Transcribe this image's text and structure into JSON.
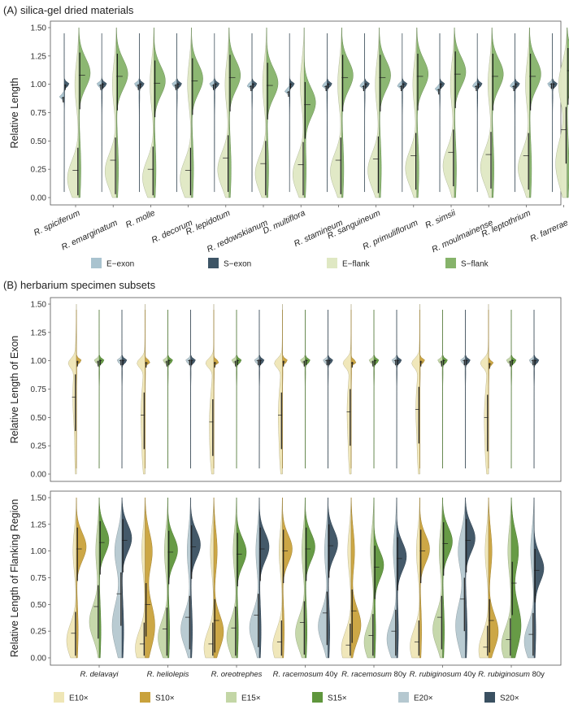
{
  "colors": {
    "E-exon": "#a9c3cf",
    "S-exon": "#3d5566",
    "E-flank": "#dfe8c3",
    "S-flank": "#86b36a",
    "E10": "#efe6b6",
    "S10": "#c9a23c",
    "E15": "#c3d6a6",
    "S15": "#5f963c",
    "E20": "#b5c8d0",
    "S20": "#3a5061"
  },
  "chart_data": [
    {
      "title": "(A) silica-gel dried materials",
      "type": "violin",
      "ylabel": "Relative Length",
      "ylim": [
        0,
        1.5
      ],
      "yticks": [
        "0.00",
        "0.25",
        "0.50",
        "0.75",
        "1.00",
        "1.25",
        "1.50"
      ],
      "categories": [
        "R. spiciferum",
        "R. emarginatum",
        "R. molle",
        "R. decorum",
        "R. lepidotum",
        "R. redowskianum",
        "D. multiflora",
        "R. stamineum",
        "R. sanguineum",
        "R. primuliflorum",
        "R. simsii",
        "R. moulmainense",
        "R. leptothrium",
        "R. farrerae"
      ],
      "legend": [
        "E−exon",
        "S−exon",
        "E−flank",
        "S−flank"
      ],
      "series": [
        {
          "name": "E-exon",
          "key": "E-exon",
          "mode": "exon",
          "median": [
            0.88,
            0.99,
            0.99,
            0.99,
            0.99,
            0.98,
            0.93,
            0.98,
            0.98,
            0.98,
            0.95,
            0.98,
            0.98,
            1.0
          ]
        },
        {
          "name": "S-exon",
          "key": "S-exon",
          "mode": "exon",
          "median": [
            0.99,
            1.0,
            1.0,
            1.0,
            1.0,
            1.0,
            1.0,
            1.0,
            1.0,
            1.0,
            1.0,
            1.0,
            1.0,
            1.0
          ]
        },
        {
          "name": "E-flank",
          "key": "E-flank",
          "mode": "flank",
          "median": [
            0.24,
            0.33,
            0.25,
            0.24,
            0.35,
            0.3,
            0.29,
            0.33,
            0.34,
            0.37,
            0.4,
            0.38,
            0.37,
            0.6
          ]
        },
        {
          "name": "S-flank",
          "key": "S-flank",
          "mode": "flank",
          "median": [
            1.08,
            1.07,
            1.01,
            1.03,
            1.06,
            0.99,
            0.82,
            1.06,
            1.06,
            1.07,
            1.09,
            1.07,
            1.07,
            1.12
          ]
        }
      ]
    },
    {
      "title": "(B) herbarium specimen subsets",
      "type": "violin",
      "ylabel_top": "Relative Length of Exon",
      "ylabel_bottom": "Relative Length of Flanking Region",
      "ylim": [
        0,
        1.5
      ],
      "yticks": [
        "0.00",
        "0.25",
        "0.50",
        "0.75",
        "1.00",
        "1.25",
        "1.50"
      ],
      "categories": [
        "R. delavayi",
        "R. heliolepis",
        "R. oreotrephes",
        "R. racemosum 40y",
        "R. racemosum 80y",
        "R. rubiginosum 40y",
        "R. rubiginosum 80y"
      ],
      "legend": [
        "E10×",
        "S10×",
        "E15×",
        "S15×",
        "E20×",
        "S20×"
      ],
      "exon_series": [
        {
          "name": "E10×",
          "key": "E10",
          "median": [
            0.68,
            0.52,
            0.46,
            0.52,
            0.55,
            0.57,
            0.5
          ]
        },
        {
          "name": "S10×",
          "key": "S10",
          "median": [
            0.99,
            0.98,
            0.98,
            0.99,
            0.98,
            0.99,
            0.97
          ]
        },
        {
          "name": "E15×",
          "key": "E15",
          "median": [
            0.99,
            0.99,
            0.99,
            0.99,
            0.99,
            0.99,
            0.99
          ]
        },
        {
          "name": "S15×",
          "key": "S15",
          "median": [
            1.0,
            1.0,
            1.0,
            1.0,
            1.0,
            1.0,
            1.0
          ]
        },
        {
          "name": "E20×",
          "key": "E20",
          "median": [
            1.0,
            1.0,
            1.0,
            1.0,
            1.0,
            1.0,
            1.0
          ]
        },
        {
          "name": "S20×",
          "key": "S20",
          "median": [
            1.0,
            1.0,
            1.0,
            1.0,
            1.0,
            1.0,
            1.0
          ]
        }
      ],
      "flank_series": [
        {
          "name": "E10×",
          "key": "E10",
          "median": [
            0.23,
            0.13,
            0.13,
            0.15,
            0.12,
            0.15,
            0.1
          ]
        },
        {
          "name": "S10×",
          "key": "S10",
          "median": [
            1.02,
            0.5,
            0.35,
            1.0,
            0.44,
            1.0,
            0.35
          ]
        },
        {
          "name": "E15×",
          "key": "E15",
          "median": [
            0.48,
            0.27,
            0.28,
            0.33,
            0.21,
            0.38,
            0.17
          ]
        },
        {
          "name": "S15×",
          "key": "S15",
          "median": [
            1.08,
            0.99,
            0.97,
            1.02,
            0.85,
            1.07,
            0.7
          ]
        },
        {
          "name": "E20×",
          "key": "E20",
          "median": [
            0.6,
            0.38,
            0.4,
            0.42,
            0.25,
            0.55,
            0.22
          ]
        },
        {
          "name": "S20×",
          "key": "S20",
          "median": [
            1.1,
            1.04,
            1.02,
            1.05,
            0.93,
            1.1,
            0.82
          ]
        }
      ]
    }
  ]
}
